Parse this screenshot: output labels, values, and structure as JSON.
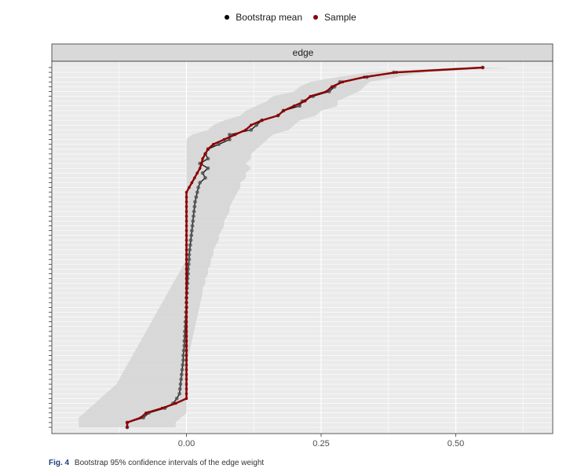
{
  "legend": {
    "items": [
      {
        "label": "Bootstrap mean",
        "color": "#000000"
      },
      {
        "label": "Sample",
        "color": "#8b0000"
      }
    ]
  },
  "caption": {
    "fig_label": "Fig. 4",
    "text": "Bootstrap 95% confidence intervals of the edge weight"
  },
  "chart_data": {
    "type": "line",
    "facet_label": "edge",
    "xlim": [
      -0.25,
      0.68
    ],
    "x_ticks": [
      0.0,
      0.25,
      0.5
    ],
    "x_tick_labels": [
      "0.00",
      "0.25",
      "0.50"
    ],
    "n_edges": 76,
    "grid": true,
    "legend_position": "top",
    "sample": [
      0.55,
      0.39,
      0.33,
      0.29,
      0.27,
      0.26,
      0.23,
      0.22,
      0.2,
      0.18,
      0.17,
      0.14,
      0.12,
      0.11,
      0.09,
      0.07,
      0.05,
      0.04,
      0.035,
      0.03,
      0.028,
      0.025,
      0.02,
      0.015,
      0.01,
      0.005,
      0,
      0,
      0,
      0,
      0,
      0,
      0,
      0,
      0,
      0,
      0,
      0,
      0,
      0,
      0,
      0,
      0,
      0,
      0,
      0,
      0,
      0,
      0,
      0,
      0,
      0,
      0,
      0,
      0,
      0,
      0,
      0,
      0,
      0,
      0,
      0,
      0,
      0,
      0,
      0,
      0,
      0,
      0,
      0,
      -0.02,
      -0.045,
      -0.075,
      -0.085,
      -0.11,
      -0.11
    ],
    "bootstrap_mean": [
      0.55,
      0.385,
      0.335,
      0.285,
      0.275,
      0.265,
      0.235,
      0.215,
      0.21,
      0.18,
      0.17,
      0.14,
      0.13,
      0.12,
      0.08,
      0.08,
      0.06,
      0.04,
      0.035,
      0.04,
      0.025,
      0.04,
      0.03,
      0.035,
      0.025,
      0.022,
      0.02,
      0.018,
      0.016,
      0.015,
      0.014,
      0.013,
      0.012,
      0.011,
      0.01,
      0.009,
      0.008,
      0.007,
      0.006,
      0.005,
      0.005,
      0.004,
      0.003,
      0.003,
      0.002,
      0.002,
      0.001,
      0.001,
      0,
      0,
      0,
      -0.001,
      -0.001,
      -0.002,
      -0.002,
      -0.003,
      -0.003,
      -0.004,
      -0.004,
      -0.005,
      -0.006,
      -0.006,
      -0.007,
      -0.008,
      -0.009,
      -0.01,
      -0.011,
      -0.012,
      -0.013,
      -0.018,
      -0.025,
      -0.04,
      -0.07,
      -0.08,
      -0.11,
      -0.11
    ],
    "ci_lower": [
      0.5,
      0.34,
      0.28,
      0.23,
      0.21,
      0.2,
      0.16,
      0.15,
      0.13,
      0.11,
      0.1,
      0.07,
      0.05,
      0.04,
      0.01,
      0.0,
      0.0,
      0.0,
      0.0,
      0.0,
      0.0,
      0.0,
      0.0,
      0.0,
      0.0,
      0.0,
      0.0,
      0.0,
      0.0,
      0.0,
      0.0,
      0.0,
      0.0,
      0.0,
      0.0,
      0.0,
      0.0,
      0.0,
      0.0,
      0.0,
      0.0,
      -0.005,
      -0.01,
      -0.015,
      -0.02,
      -0.025,
      -0.03,
      -0.035,
      -0.04,
      -0.045,
      -0.05,
      -0.055,
      -0.06,
      -0.065,
      -0.07,
      -0.075,
      -0.08,
      -0.085,
      -0.09,
      -0.095,
      -0.1,
      -0.105,
      -0.11,
      -0.115,
      -0.12,
      -0.125,
      -0.13,
      -0.14,
      -0.15,
      -0.16,
      -0.17,
      -0.18,
      -0.19,
      -0.2,
      -0.2,
      -0.2
    ],
    "ci_upper": [
      0.6,
      0.44,
      0.39,
      0.34,
      0.33,
      0.32,
      0.3,
      0.28,
      0.28,
      0.25,
      0.24,
      0.21,
      0.2,
      0.19,
      0.16,
      0.15,
      0.14,
      0.13,
      0.12,
      0.12,
      0.11,
      0.12,
      0.11,
      0.11,
      0.1,
      0.1,
      0.095,
      0.09,
      0.085,
      0.08,
      0.08,
      0.075,
      0.07,
      0.07,
      0.065,
      0.06,
      0.06,
      0.055,
      0.05,
      0.05,
      0.045,
      0.045,
      0.04,
      0.04,
      0.035,
      0.035,
      0.03,
      0.03,
      0.028,
      0.026,
      0.024,
      0.022,
      0.02,
      0.018,
      0.016,
      0.014,
      0.012,
      0.01,
      0.008,
      0.006,
      0.004,
      0.002,
      0.001,
      0.0,
      0.0,
      0.0,
      0.0,
      0.0,
      0.0,
      0.0,
      0.0,
      0.0,
      0.0,
      -0.01,
      -0.02,
      -0.02
    ],
    "colors": {
      "sample": "#8b0000",
      "bootstrap_mean": "#1a1a1a",
      "ci_band": "#d6d6d6",
      "panel_bg": "#ebebeb",
      "strip_bg": "#d9d9d9",
      "grid": "#ffffff"
    }
  }
}
